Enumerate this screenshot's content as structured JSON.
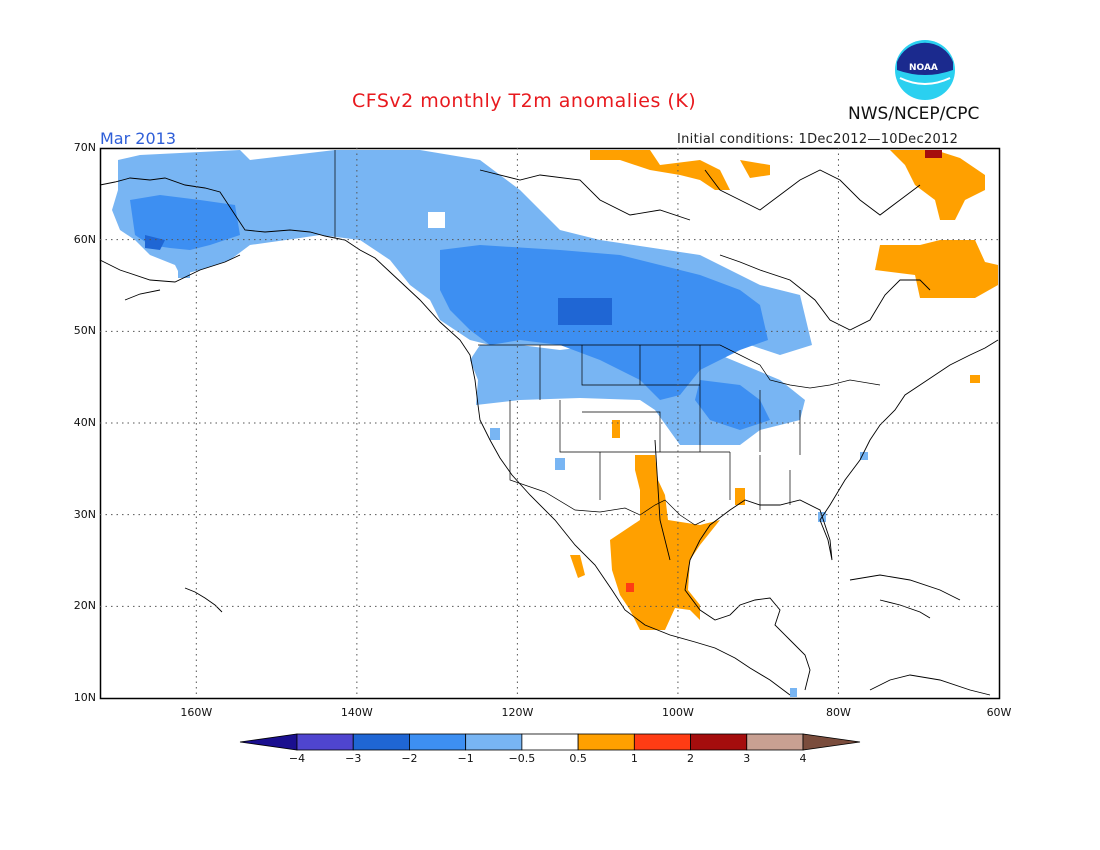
{
  "header": {
    "title": "CFSv2 monthly T2m anomalies (K)",
    "period": "Mar 2013",
    "initial_conditions": "Initial conditions: 1Dec2012—10Dec2012",
    "org_label": "NWS/NCEP/CPC",
    "logo_text": "NOAA"
  },
  "map": {
    "lon_range": [
      -172,
      -60
    ],
    "lat_range": [
      10,
      70
    ],
    "lat_ticks": [
      "70N",
      "60N",
      "50N",
      "40N",
      "30N",
      "20N",
      "10N"
    ],
    "lon_ticks": [
      "160W",
      "140W",
      "120W",
      "100W",
      "80W",
      "60W"
    ],
    "gridlines": "dotted"
  },
  "colorbar": {
    "tick_labels": [
      "−4",
      "−3",
      "−2",
      "−1",
      "−0.5",
      "0.5",
      "1",
      "2",
      "3",
      "4"
    ],
    "bins": [
      {
        "range": "< -4",
        "color": "#1a0f8f"
      },
      {
        "range": "-4 to -3",
        "color": "#4f45cf"
      },
      {
        "range": "-3 to -2",
        "color": "#1f66d4"
      },
      {
        "range": "-2 to -1",
        "color": "#3d8ff2"
      },
      {
        "range": "-1 to -0.5",
        "color": "#78b5f3"
      },
      {
        "range": "-0.5 to 0.5",
        "color": "#ffffff"
      },
      {
        "range": "0.5 to 1",
        "color": "#ffa000"
      },
      {
        "range": "1 to 2",
        "color": "#ff3c14"
      },
      {
        "range": "2 to 3",
        "color": "#a50d0d"
      },
      {
        "range": "3 to 4",
        "color": "#c8a092"
      },
      {
        "range": "> 4",
        "color": "#7a4c3c"
      }
    ]
  }
}
